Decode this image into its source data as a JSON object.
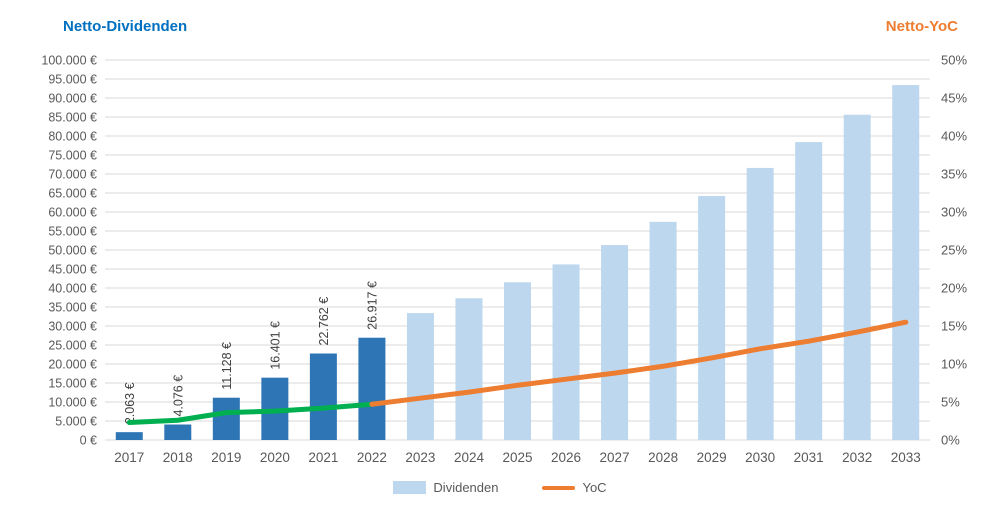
{
  "chart_data": {
    "type": "combo-bar-line",
    "categories": [
      "2017",
      "2018",
      "2019",
      "2020",
      "2021",
      "2022",
      "2023",
      "2024",
      "2025",
      "2026",
      "2027",
      "2028",
      "2029",
      "2030",
      "2031",
      "2032",
      "2033"
    ],
    "series": [
      {
        "name": "Dividenden",
        "type": "bar",
        "axis": "left",
        "values": [
          2063,
          4076,
          11128,
          16401,
          22762,
          26917,
          33400,
          37300,
          41500,
          46200,
          51300,
          57400,
          64200,
          71600,
          78400,
          85600,
          93400
        ],
        "actual_count": 6,
        "data_labels": [
          "2.063 €",
          "4.076 €",
          "11.128 €",
          "16.401 €",
          "22.762 €",
          "26.917 €"
        ],
        "color_actual": "#2E75B6",
        "color_forecast": "#BDD7EE"
      },
      {
        "name": "YoC",
        "type": "line",
        "axis": "right",
        "values": [
          2.3,
          2.6,
          3.6,
          3.8,
          4.2,
          4.7,
          5.5,
          6.3,
          7.2,
          8.0,
          8.8,
          9.7,
          10.8,
          12.0,
          13.0,
          14.2,
          15.5
        ],
        "split_index": 5,
        "color_actual": "#00B050",
        "color_forecast": "#ED7D31"
      }
    ],
    "left_axis": {
      "title": "Netto-Dividenden",
      "min": 0,
      "max": 100000,
      "step": 5000,
      "ticks": [
        "100.000 €",
        "95.000 €",
        "90.000 €",
        "85.000 €",
        "80.000 €",
        "75.000 €",
        "70.000 €",
        "65.000 €",
        "60.000 €",
        "55.000 €",
        "50.000 €",
        "45.000 €",
        "40.000 €",
        "35.000 €",
        "30.000 €",
        "25.000 €",
        "20.000 €",
        "15.000 €",
        "10.000 €",
        "5.000 €",
        "0 €"
      ]
    },
    "right_axis": {
      "title": "Netto-YoC",
      "min": 0,
      "max": 50,
      "step": 5,
      "ticks": [
        "50%",
        "45%",
        "40%",
        "35%",
        "30%",
        "25%",
        "20%",
        "15%",
        "10%",
        "5%",
        "0%"
      ]
    },
    "legend": [
      {
        "label": "Dividenden",
        "shape": "rect",
        "color": "#BDD7EE"
      },
      {
        "label": "YoC",
        "shape": "line",
        "color": "#ED7D31"
      }
    ],
    "grid": {
      "color": "#D9D9D9",
      "on": true
    },
    "text_colors": {
      "ticks": "#595959",
      "data_labels": "#404040"
    }
  }
}
